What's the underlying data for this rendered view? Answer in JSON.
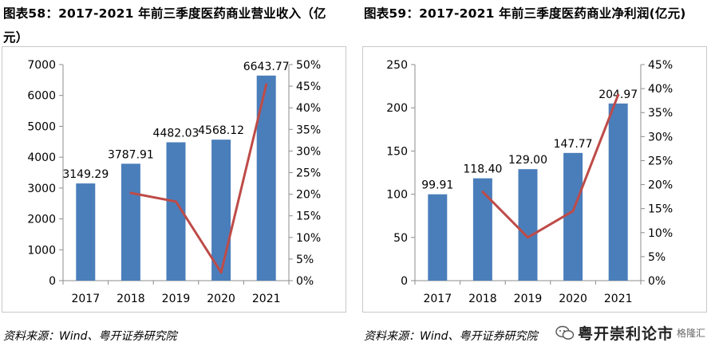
{
  "panels": [
    {
      "figure_title": "图表58：2017-2021 年前三季度医药商业营业收入（亿元）",
      "source": "资料来源：Wind、粤开证券研究院"
    },
    {
      "figure_title": "图表59：2017-2021 年前三季度医药商业净利润(亿元)",
      "source": "资料来源：Wind、粤开证券研究院"
    }
  ],
  "watermark": {
    "name": "粤开崇利论市",
    "sub": "格隆汇"
  },
  "colors": {
    "bar": "#4a7ebb",
    "line": "#be4b48",
    "grid": "#d9d9d9"
  },
  "chart_data": [
    {
      "type": "bar",
      "categories": [
        "2017",
        "2018",
        "2019",
        "2020",
        "2021"
      ],
      "series": [
        {
          "type": "bar",
          "axis": "left",
          "values": [
            3149.29,
            3787.91,
            4482.03,
            4568.12,
            6643.77
          ],
          "labels": [
            "3149.29",
            "3787.91",
            "4482.03",
            "4568.12",
            "6643.77"
          ]
        },
        {
          "type": "line",
          "axis": "right",
          "values": [
            null,
            20.3,
            18.3,
            1.9,
            45.4
          ]
        }
      ],
      "y_left": {
        "min": 0,
        "max": 7000,
        "step": 1000
      },
      "y_right": {
        "min": 0,
        "max": 50,
        "step": 5,
        "suffix": "%"
      },
      "grid": false
    },
    {
      "type": "bar",
      "categories": [
        "2017",
        "2018",
        "2019",
        "2020",
        "2021"
      ],
      "series": [
        {
          "type": "bar",
          "axis": "left",
          "values": [
            99.91,
            118.4,
            129.0,
            147.77,
            204.97
          ],
          "labels": [
            "99.91",
            "118.40",
            "129.00",
            "147.77",
            "204.97"
          ]
        },
        {
          "type": "line",
          "axis": "right",
          "values": [
            null,
            18.5,
            9.0,
            14.5,
            38.7
          ]
        }
      ],
      "y_left": {
        "min": 0,
        "max": 250,
        "step": 50
      },
      "y_right": {
        "min": 0,
        "max": 45,
        "step": 5,
        "suffix": "%"
      },
      "grid": false
    }
  ]
}
